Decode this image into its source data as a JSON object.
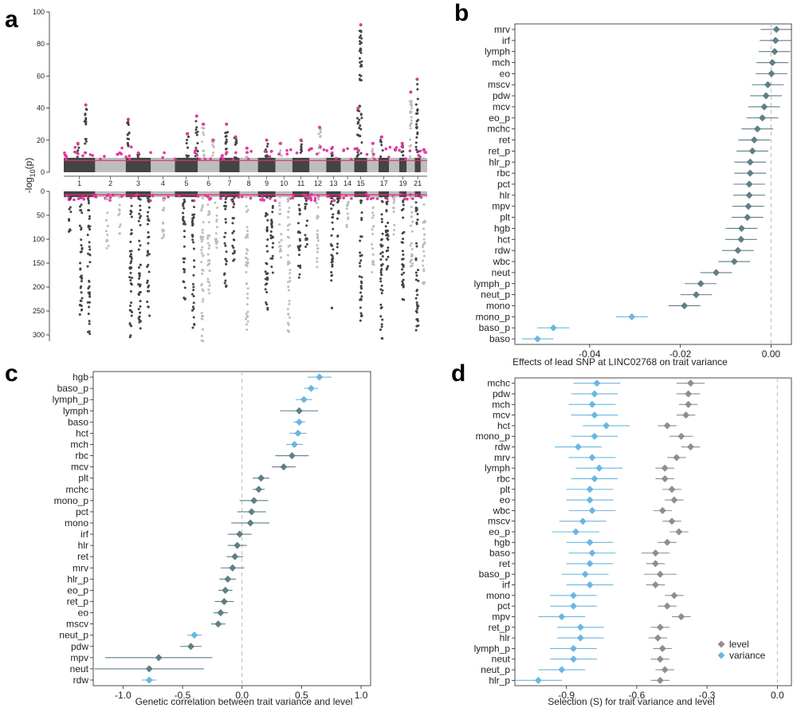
{
  "panels": {
    "a": "a",
    "b": "b",
    "c": "c",
    "d": "d"
  },
  "colors": {
    "level": "#5f7f86",
    "variance": "#6bb6e0",
    "level_d": "#8e8e8e",
    "manhattan_dark": "#444444",
    "manhattan_light": "#bdbdbd",
    "highlight": "#e0399e",
    "threshold": "#e0307a"
  },
  "chart_data": [
    {
      "id": "a",
      "type": "scatter",
      "subtype": "miami",
      "ylabel_top": "-log",
      "ylabel_sub": "10",
      "ylabel_suffix": "(p)",
      "top_ticks": [
        "100",
        "80",
        "60",
        "40",
        "20",
        "0"
      ],
      "top_ylim": [
        0,
        100
      ],
      "bottom_ticks": [
        "0",
        "50",
        "100",
        "150",
        "200",
        "250",
        "300"
      ],
      "bottom_ylim": [
        0,
        320
      ],
      "chromosome_labels": [
        "1",
        "2",
        "3",
        "4",
        "5",
        "6",
        "7",
        "8",
        "9",
        "10",
        "11",
        "12",
        "13",
        "14",
        "15",
        "17",
        "19",
        "21"
      ],
      "chromosomes": 22,
      "threshold": 7.3
    },
    {
      "id": "b",
      "type": "scatter",
      "subtype": "forest",
      "xlabel": "Effects of lead SNP at LINC02768 on trait variance",
      "xticks": [
        "-0.04",
        "-0.02",
        "0.00"
      ],
      "xtick_values": [
        -0.04,
        -0.02,
        0.0
      ],
      "xlim": [
        -0.0565,
        0.0045
      ],
      "ref_line": 0.0,
      "categories": [
        "mrv",
        "irf",
        "lymph",
        "mch",
        "eo",
        "mscv",
        "pdw",
        "mcv",
        "eo_p",
        "mchc",
        "ret",
        "ret_p",
        "hlr_p",
        "rbc",
        "pct",
        "hlr",
        "mpv",
        "plt",
        "hgb",
        "hct",
        "rdw",
        "wbc",
        "neut",
        "lymph_p",
        "neut_p",
        "mono",
        "mono_p",
        "baso_p",
        "baso"
      ],
      "estimates": [
        0.0012,
        0.001,
        0.0008,
        0.0003,
        0.0001,
        -0.0007,
        -0.0011,
        -0.0015,
        -0.0019,
        -0.003,
        -0.0037,
        -0.0041,
        -0.0046,
        -0.0046,
        -0.0048,
        -0.0048,
        -0.005,
        -0.0052,
        -0.0065,
        -0.0066,
        -0.0073,
        -0.0081,
        -0.0121,
        -0.0155,
        -0.0165,
        -0.0191,
        -0.0307,
        -0.048,
        -0.0515
      ],
      "errors": [
        0.0035,
        0.0035,
        0.0035,
        0.0035,
        0.0035,
        0.0035,
        0.0035,
        0.0035,
        0.0035,
        0.0035,
        0.0035,
        0.0035,
        0.0035,
        0.0035,
        0.0035,
        0.0035,
        0.0035,
        0.0035,
        0.0035,
        0.0035,
        0.0035,
        0.0035,
        0.0035,
        0.0035,
        0.0035,
        0.0035,
        0.0035,
        0.0035,
        0.0035
      ],
      "group": [
        "level",
        "level",
        "level",
        "level",
        "level",
        "level",
        "level",
        "level",
        "level",
        "level",
        "level",
        "level",
        "level",
        "level",
        "level",
        "level",
        "level",
        "level",
        "level",
        "level",
        "level",
        "level",
        "level",
        "level",
        "level",
        "level",
        "variance",
        "variance",
        "variance"
      ]
    },
    {
      "id": "c",
      "type": "scatter",
      "subtype": "forest",
      "xlabel": "Genetic correlation between trait variance and level",
      "xticks": [
        "-1.0",
        "-0.5",
        "0.0",
        "0.5",
        "1.0"
      ],
      "xtick_values": [
        -1.0,
        -0.5,
        0.0,
        0.5,
        1.0
      ],
      "xlim": [
        -1.25,
        1.08
      ],
      "ref_line": 0.0,
      "categories": [
        "hgb",
        "baso_p",
        "lymph_p",
        "lymph",
        "baso",
        "hct",
        "mch",
        "rbc",
        "mcv",
        "plt",
        "mchc",
        "mono_p",
        "pct",
        "mono",
        "irf",
        "hlr",
        "ret",
        "mrv",
        "hlr_p",
        "eo_p",
        "ret_p",
        "eo",
        "mscv",
        "neut_p",
        "pdw",
        "mpv",
        "neut",
        "rdw"
      ],
      "estimates": [
        0.65,
        0.58,
        0.52,
        0.48,
        0.48,
        0.47,
        0.44,
        0.42,
        0.35,
        0.16,
        0.14,
        0.1,
        0.08,
        0.07,
        -0.02,
        -0.04,
        -0.06,
        -0.08,
        -0.12,
        -0.14,
        -0.15,
        -0.18,
        -0.2,
        -0.4,
        -0.43,
        -0.7,
        -0.78,
        -0.78
      ],
      "errors": [
        0.1,
        0.06,
        0.07,
        0.16,
        0.05,
        0.07,
        0.07,
        0.14,
        0.1,
        0.07,
        0.05,
        0.12,
        0.12,
        0.16,
        0.1,
        0.08,
        0.07,
        0.1,
        0.07,
        0.06,
        0.08,
        0.06,
        0.06,
        0.06,
        0.09,
        0.45,
        0.46,
        0.06
      ],
      "group": [
        "variance",
        "variance",
        "variance",
        "level",
        "variance",
        "variance",
        "variance",
        "level",
        "level",
        "level",
        "level",
        "level",
        "level",
        "level",
        "level",
        "level",
        "level",
        "level",
        "level",
        "level",
        "level",
        "level",
        "level",
        "variance",
        "level",
        "level",
        "level",
        "variance"
      ]
    },
    {
      "id": "d",
      "type": "scatter",
      "subtype": "forest",
      "xlabel": "Selection (S) for trait variance and level",
      "xticks": [
        "-0.9",
        "-0.6",
        "-0.3",
        "0.0"
      ],
      "xtick_values": [
        -0.9,
        -0.6,
        -0.3,
        0.0
      ],
      "xlim": [
        -1.12,
        0.06
      ],
      "ref_line": 0.0,
      "categories": [
        "mchc",
        "pdw",
        "mch",
        "mcv",
        "hct",
        "mono_p",
        "rdw",
        "mrv",
        "lymph",
        "rbc",
        "plt",
        "eo",
        "wbc",
        "mscv",
        "eo_p",
        "hgb",
        "baso",
        "ret",
        "baso_p",
        "irf",
        "mono",
        "pct",
        "mpv",
        "ret_p",
        "hlr",
        "lymph_p",
        "neut",
        "neut_p",
        "hlr_p"
      ],
      "series": [
        {
          "name": "level",
          "values": [
            -0.37,
            -0.38,
            -0.38,
            -0.39,
            -0.47,
            -0.41,
            -0.37,
            -0.43,
            -0.48,
            -0.48,
            -0.45,
            -0.44,
            -0.49,
            -0.45,
            -0.42,
            -0.47,
            -0.52,
            -0.52,
            -0.5,
            -0.52,
            -0.44,
            -0.47,
            -0.41,
            -0.5,
            -0.51,
            -0.49,
            -0.5,
            -0.48,
            -0.5
          ],
          "errors": [
            0.06,
            0.05,
            0.04,
            0.04,
            0.04,
            0.05,
            0.04,
            0.04,
            0.04,
            0.04,
            0.04,
            0.04,
            0.04,
            0.04,
            0.04,
            0.04,
            0.06,
            0.04,
            0.07,
            0.04,
            0.04,
            0.04,
            0.04,
            0.04,
            0.04,
            0.04,
            0.04,
            0.04,
            0.04
          ]
        },
        {
          "name": "variance",
          "values": [
            -0.77,
            -0.78,
            -0.79,
            -0.78,
            -0.73,
            -0.78,
            -0.85,
            -0.79,
            -0.76,
            -0.78,
            -0.8,
            -0.8,
            -0.79,
            -0.83,
            -0.86,
            -0.8,
            -0.79,
            -0.8,
            -0.82,
            -0.8,
            -0.87,
            -0.87,
            -0.92,
            -0.84,
            -0.84,
            -0.87,
            -0.87,
            -0.92,
            -1.02
          ],
          "errors": [
            0.1,
            0.1,
            0.1,
            0.1,
            0.1,
            0.1,
            0.1,
            0.1,
            0.1,
            0.1,
            0.1,
            0.1,
            0.1,
            0.1,
            0.1,
            0.1,
            0.1,
            0.1,
            0.1,
            0.1,
            0.1,
            0.1,
            0.1,
            0.1,
            0.1,
            0.1,
            0.1,
            0.1,
            0.1
          ]
        }
      ],
      "legend": [
        "level",
        "variance"
      ],
      "legend_position": "bottom-right"
    }
  ]
}
